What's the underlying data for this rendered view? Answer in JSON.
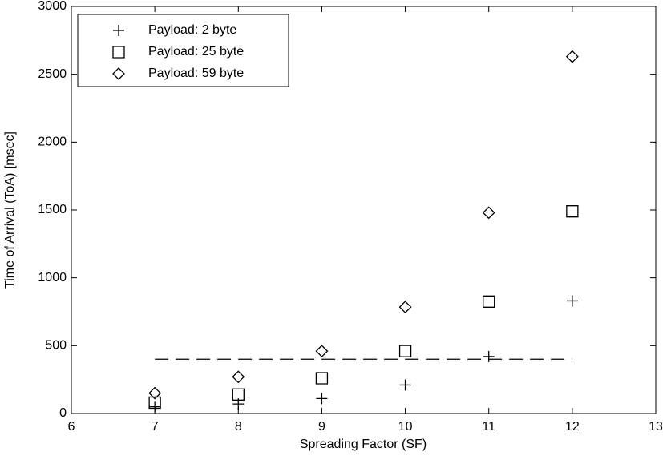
{
  "chart_data": {
    "type": "scatter",
    "x_label": "Spreading Factor (SF)",
    "y_label": "Time of Arrival (ToA) [msec]",
    "xlim": [
      6,
      13
    ],
    "xticks": [
      6,
      7,
      8,
      9,
      10,
      11,
      12,
      13
    ],
    "ylim": [
      0,
      3000
    ],
    "yticks": [
      0,
      500,
      1000,
      1500,
      2000,
      2500,
      3000
    ],
    "grid": false,
    "legend": "upper left",
    "x": [
      7,
      8,
      9,
      10,
      11,
      12
    ],
    "series": [
      {
        "name": "Payload: 2 byte",
        "marker": "plus",
        "color": "#000000",
        "values": [
          50,
          70,
          110,
          210,
          420,
          830
        ]
      },
      {
        "name": "Payload: 25 byte",
        "marker": "square",
        "color": "#000000",
        "values": [
          80,
          140,
          260,
          460,
          825,
          1490
        ]
      },
      {
        "name": "Payload: 59 byte",
        "marker": "diamond",
        "color": "#000000",
        "values": [
          150,
          270,
          460,
          785,
          1480,
          2630
        ]
      }
    ],
    "hline": {
      "y": 400,
      "x": [
        7,
        12
      ],
      "color": "#000000"
    }
  }
}
